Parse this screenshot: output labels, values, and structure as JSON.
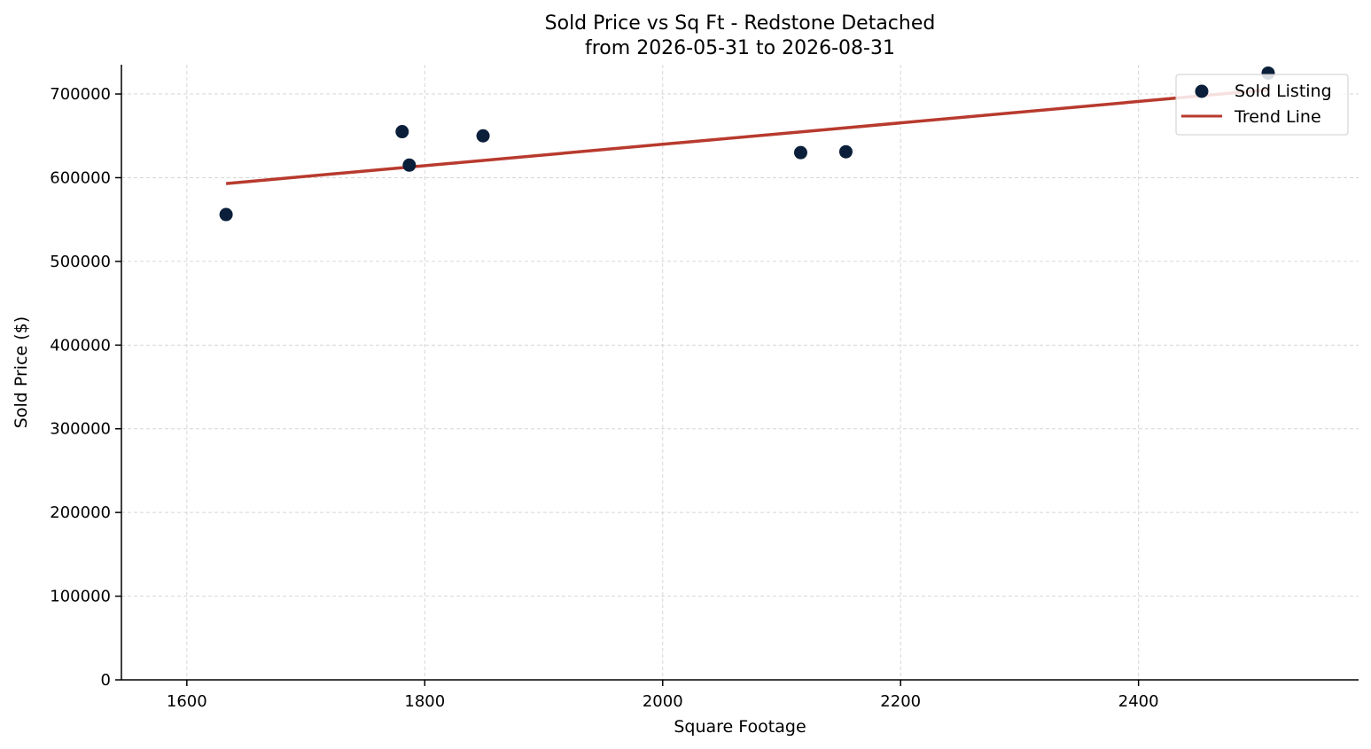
{
  "chart_data": {
    "type": "scatter",
    "title": "Sold Price vs Sq Ft - Redstone Detached",
    "subtitle": "from 2026-05-31 to 2026-08-31",
    "xlabel": "Square Footage",
    "ylabel": "Sold Price ($)",
    "xlim": [
      1545,
      2585
    ],
    "ylim": [
      0,
      735000
    ],
    "x_ticks": [
      1600,
      1800,
      2000,
      2200,
      2400
    ],
    "x_tick_labels": [
      "1600",
      "1800",
      "2000",
      "2200",
      "2400"
    ],
    "y_ticks": [
      0,
      100000,
      200000,
      300000,
      400000,
      500000,
      600000,
      700000
    ],
    "y_tick_labels": [
      "0",
      "100000",
      "200000",
      "300000",
      "400000",
      "500000",
      "600000",
      "700000"
    ],
    "grid": true,
    "legend_position": "top-right",
    "series": [
      {
        "name": "Sold Listing",
        "kind": "scatter",
        "color": "#0b1f3a",
        "points": [
          {
            "x": 1633,
            "y": 556000
          },
          {
            "x": 1781,
            "y": 655000
          },
          {
            "x": 1787,
            "y": 615000
          },
          {
            "x": 1849,
            "y": 650000
          },
          {
            "x": 2116,
            "y": 630000
          },
          {
            "x": 2154,
            "y": 631000
          },
          {
            "x": 2509,
            "y": 725000
          }
        ]
      },
      {
        "name": "Trend Line",
        "kind": "line",
        "color": "#b83a2e",
        "points": [
          {
            "x": 1633,
            "y": 593000
          },
          {
            "x": 2509,
            "y": 705000
          }
        ]
      }
    ]
  }
}
